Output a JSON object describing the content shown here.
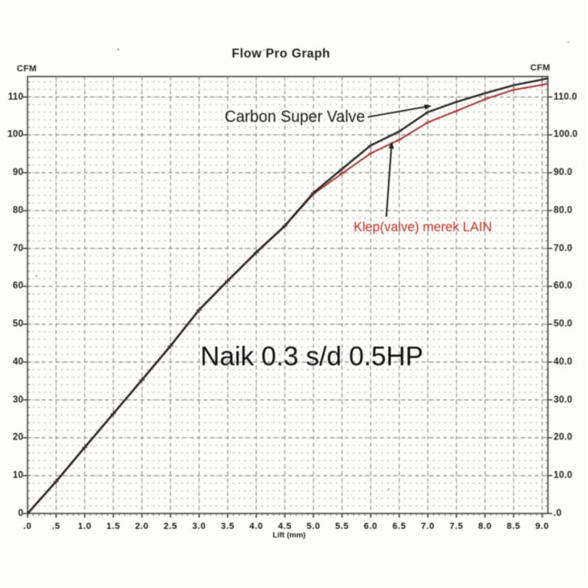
{
  "title": "Flow Pro Graph",
  "y_axis_unit_left": "CFM",
  "y_axis_unit_right": "CFM",
  "chart_data": {
    "type": "line",
    "title": "Flow Pro Graph",
    "xlabel": "Lift (mm)",
    "ylabel_left": "CFM",
    "ylabel_right": "CFM",
    "xlim": [
      0,
      9.1
    ],
    "ylim": [
      0,
      115.4
    ],
    "grid": "major dashed every 0.5 mm / 10 CFM, minor dots every 0.1 mm / 2 CFM",
    "legend_position": "none (labels annotated with arrows)",
    "x": [
      0,
      0.5,
      1.0,
      1.5,
      2.0,
      2.5,
      3.0,
      3.5,
      4.0,
      4.5,
      5.0,
      5.5,
      6.0,
      6.5,
      7.0,
      7.5,
      8.0,
      8.5,
      9.0,
      9.1
    ],
    "series": [
      {
        "name": "Carbon Super Valve",
        "color": "#262524",
        "marker": "plus",
        "values": [
          0,
          8.5,
          17.5,
          26.4,
          35.3,
          44.3,
          53.8,
          61.5,
          69.0,
          76.0,
          84.7,
          91.0,
          97.2,
          100.9,
          106.0,
          108.7,
          111.0,
          113.1,
          114.6,
          114.9
        ]
      },
      {
        "name": "Klep(valve) merek LAIN",
        "color": "#a63a30",
        "marker": "plus",
        "values": [
          0,
          8.5,
          17.5,
          26.4,
          35.3,
          44.3,
          53.8,
          61.5,
          69.0,
          76.0,
          84.4,
          89.8,
          95.1,
          98.7,
          103.3,
          106.3,
          109.4,
          111.9,
          113.2,
          113.5
        ]
      }
    ],
    "x_ticks": {
      "values": [
        0,
        0.5,
        1.0,
        1.5,
        2.0,
        2.5,
        3.0,
        3.5,
        4.0,
        4.5,
        5.0,
        5.5,
        6.0,
        6.5,
        7.0,
        7.5,
        8.0,
        8.5,
        9.0
      ],
      "labels": [
        ".0",
        ".5",
        "1.0",
        "1.5",
        "2.0",
        "2.5",
        "3.0",
        "3.5",
        "4.0",
        "4.5",
        "5.0",
        "5.5",
        "6.0",
        "6.5",
        "7.0",
        "7.5",
        "8.0",
        "8.5",
        "9.0"
      ]
    },
    "y_ticks": {
      "values": [
        0,
        10,
        20,
        30,
        40,
        50,
        60,
        70,
        80,
        90,
        100,
        110
      ],
      "left_labels": [
        "0",
        "10",
        "20",
        "30",
        "40",
        "50",
        "60",
        "70",
        "80",
        "90",
        "100",
        "110"
      ],
      "right_labels": [
        ".0",
        "10.0",
        "20.0",
        "30.0",
        "40.0",
        "50.0",
        "60.0",
        "70.0",
        "80.0",
        "90.0",
        "100.0",
        "110.0"
      ]
    },
    "annotations": [
      {
        "id": "carbon",
        "text": "Carbon Super Valve",
        "color": "#191919",
        "arrow_target": {
          "x": 7.07,
          "y": 107.7
        }
      },
      {
        "id": "klep",
        "text": "Klep(valve) merek LAIN",
        "color": "#bb3327",
        "arrow_target": {
          "x": 6.37,
          "y": 98.3
        }
      },
      {
        "id": "naik",
        "text": "Naik 0.3 s/d 0.5HP",
        "color": "#111111"
      }
    ]
  },
  "colors": {
    "carbon_curve": "#262524",
    "klep_curve": "#a63a30",
    "grid_major": "#8f8f8f",
    "grid_minor_dot": "#aeaeae",
    "axis_border": "#4d4d4d",
    "background": "#fdfdfc"
  }
}
